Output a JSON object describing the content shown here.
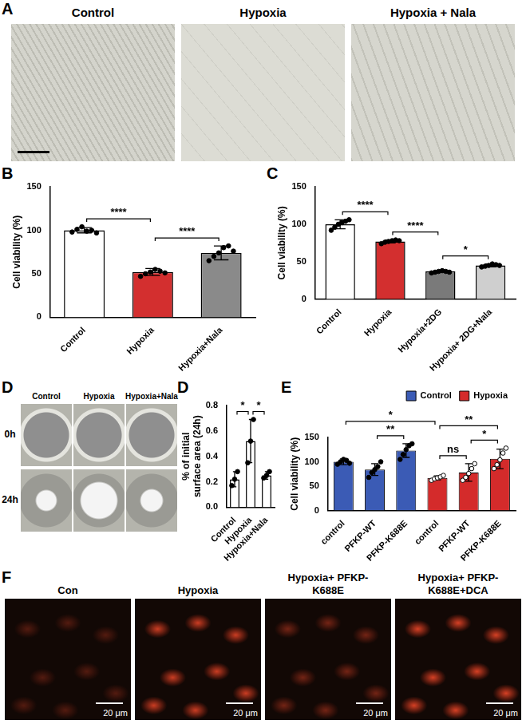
{
  "figure": {
    "A": {
      "letter": "A",
      "images": [
        "Control",
        "Hypoxia",
        "Hypoxia + Nala"
      ]
    },
    "D": {
      "letter": "D",
      "columns": [
        "Control",
        "Hypoxia",
        "Hypoxia+Nala"
      ],
      "rows": [
        "0h",
        "24h"
      ]
    },
    "F": {
      "letter": "F",
      "images": [
        "Con",
        "Hypoxia",
        "Hypoxia+ PFKP-K688E",
        "Hypoxia+ PFKP-K688E+DCA"
      ],
      "scale_bar": "20 μm"
    }
  },
  "chart_data": [
    {
      "panel": "B",
      "type": "bar",
      "categories": [
        "Control",
        "Hypoxia",
        "Hypoxia+Nala"
      ],
      "values": [
        100,
        52,
        74
      ],
      "errors": [
        3,
        4,
        8
      ],
      "points": [
        [
          98,
          101,
          104,
          99,
          100,
          97
        ],
        [
          47,
          50,
          52,
          55,
          53,
          51
        ],
        [
          65,
          70,
          74,
          80,
          82,
          76
        ]
      ],
      "colors": [
        "#ffffff",
        "#d32f2f",
        "#8a8a8a"
      ],
      "ylabel": "Cell viability (%)",
      "ylim": [
        0,
        150
      ],
      "yticks": [
        0,
        50,
        100,
        150
      ],
      "grid": false,
      "comparisons": [
        {
          "from": 0,
          "to": 1,
          "label": "****"
        },
        {
          "from": 1,
          "to": 2,
          "label": "****"
        }
      ]
    },
    {
      "panel": "C",
      "type": "bar",
      "categories": [
        "Control",
        "Hypoxia",
        "Hypoxia+2DG",
        "Hypoxia+ 2DG+Nala"
      ],
      "values": [
        100,
        77,
        37,
        45
      ],
      "errors": [
        6,
        2,
        1.5,
        2
      ],
      "points": [
        [
          92,
          96,
          100,
          102,
          104,
          106
        ],
        [
          74,
          76,
          77,
          78,
          79,
          78
        ],
        [
          35,
          36,
          37,
          38,
          37,
          36
        ],
        [
          43,
          44,
          45,
          47,
          46,
          45
        ]
      ],
      "colors": [
        "#ffffff",
        "#d32f2f",
        "#7a7a7a",
        "#cfcfcf"
      ],
      "ylabel": "Cell viability (%)",
      "ylim": [
        0,
        150
      ],
      "yticks": [
        0,
        50,
        100,
        150
      ],
      "grid": false,
      "comparisons": [
        {
          "from": 0,
          "to": 1,
          "label": "****"
        },
        {
          "from": 1,
          "to": 2,
          "label": "****"
        },
        {
          "from": 2,
          "to": 3,
          "label": "*"
        }
      ]
    },
    {
      "panel": "D",
      "type": "bar",
      "categories": [
        "Control",
        "Hypoxia",
        "Hypoxia+Nala"
      ],
      "values": [
        0.22,
        0.52,
        0.25
      ],
      "errors": [
        0.06,
        0.17,
        0.03
      ],
      "points": [
        [
          0.17,
          0.22,
          0.28
        ],
        [
          0.35,
          0.52,
          0.69
        ],
        [
          0.23,
          0.25,
          0.28
        ]
      ],
      "colors": [
        "#ffffff",
        "#ffffff",
        "#ffffff"
      ],
      "ylabel": "% of initial surface area (24h)",
      "ylim": [
        0,
        0.8
      ],
      "yticks": [
        {
          "value": 0,
          "label": "0.0"
        },
        {
          "value": 0.2,
          "label": "0.2"
        },
        {
          "value": 0.4,
          "label": "0.4"
        },
        {
          "value": 0.6,
          "label": "0.6"
        },
        {
          "value": 0.8,
          "label": "0.8"
        }
      ],
      "grid": false,
      "comparisons": [
        {
          "from": 0,
          "to": 1,
          "label": "*"
        },
        {
          "from": 1,
          "to": 2,
          "label": "*"
        }
      ]
    },
    {
      "panel": "E",
      "type": "bar",
      "categories": [
        "control",
        "PFKP-WT",
        "PFKP-K688E",
        "control",
        "PFKP-WT",
        "PFKP-K688E"
      ],
      "series": [
        {
          "name": "Control",
          "color": "#3b5bb5",
          "values": [
            100,
            84,
            123,
            null,
            null,
            null
          ],
          "errors": [
            6,
            12,
            14,
            null,
            null,
            null
          ],
          "points": [
            [
              95,
              100,
              105,
              103,
              97
            ],
            [
              68,
              78,
              84,
              90,
              100
            ],
            [
              105,
              115,
              125,
              133,
              137
            ],
            null,
            null,
            null
          ]
        },
        {
          "name": "Hypoxia",
          "color": "#d42b2b",
          "values": [
            null,
            null,
            null,
            67,
            78,
            106
          ],
          "errors": [
            null,
            null,
            null,
            4,
            18,
            20
          ],
          "points": [
            null,
            null,
            null,
            [
              62,
              65,
              67,
              69,
              72
            ],
            [
              62,
              68,
              76,
              86,
              96
            ],
            [
              86,
              94,
              104,
              118,
              128
            ]
          ]
        }
      ],
      "ylabel": "Cell viability (%)",
      "ylim": [
        0,
        150
      ],
      "yticks": [
        0,
        50,
        100,
        150
      ],
      "grid": false,
      "legend": "top right",
      "comparisons": [
        {
          "from": 0,
          "to": 3,
          "label": "*"
        },
        {
          "from": 1,
          "to": 2,
          "label": "**"
        },
        {
          "from": 3,
          "to": 5,
          "label": "**"
        },
        {
          "from": 3,
          "to": 4,
          "label": "ns"
        },
        {
          "from": 4,
          "to": 5,
          "label": "*"
        }
      ]
    }
  ]
}
